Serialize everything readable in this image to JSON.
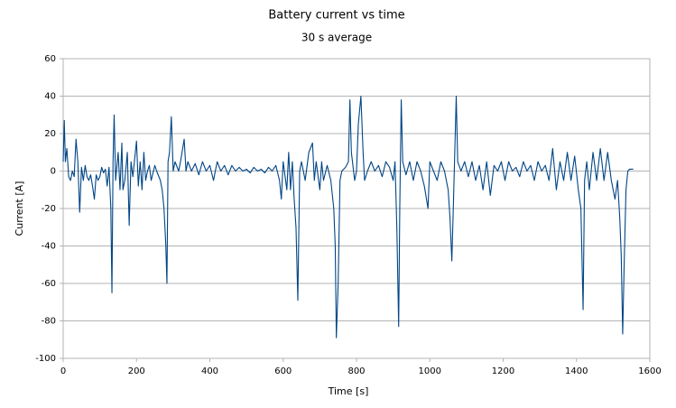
{
  "chart_data": {
    "type": "line",
    "title": "Battery current vs time",
    "subtitle": "30 s average",
    "x_label": "Time [s]",
    "y_label": "Current [A]",
    "color": "#004586",
    "grid": true,
    "xlim": [
      0,
      1600
    ],
    "xticks": [
      0,
      200,
      400,
      600,
      800,
      1000,
      1200,
      1400,
      1600
    ],
    "ylim": [
      -100,
      60
    ],
    "yticks": [
      -100,
      -80,
      -60,
      -40,
      -20,
      0,
      20,
      40,
      60
    ],
    "x": [
      0,
      3,
      6,
      10,
      15,
      20,
      25,
      30,
      35,
      40,
      45,
      50,
      55,
      60,
      65,
      70,
      75,
      80,
      85,
      90,
      95,
      100,
      105,
      110,
      115,
      120,
      125,
      130,
      133,
      136,
      139,
      143,
      150,
      155,
      160,
      163,
      168,
      175,
      180,
      185,
      190,
      200,
      205,
      210,
      215,
      220,
      225,
      230,
      235,
      240,
      250,
      255,
      265,
      270,
      275,
      280,
      283,
      286,
      290,
      295,
      300,
      305,
      315,
      320,
      330,
      335,
      340,
      350,
      360,
      370,
      380,
      390,
      400,
      410,
      420,
      430,
      440,
      450,
      460,
      470,
      480,
      490,
      500,
      510,
      520,
      530,
      540,
      550,
      560,
      570,
      580,
      590,
      595,
      600,
      610,
      615,
      620,
      625,
      630,
      635,
      640,
      645,
      650,
      660,
      670,
      680,
      685,
      690,
      700,
      705,
      710,
      720,
      730,
      738,
      742,
      745,
      750,
      755,
      760,
      770,
      778,
      782,
      786,
      795,
      800,
      805,
      812,
      818,
      822,
      830,
      840,
      850,
      860,
      870,
      880,
      890,
      900,
      905,
      910,
      915,
      918,
      922,
      926,
      935,
      945,
      955,
      965,
      975,
      985,
      995,
      1000,
      1010,
      1020,
      1030,
      1040,
      1050,
      1055,
      1060,
      1064,
      1068,
      1072,
      1076,
      1085,
      1095,
      1105,
      1115,
      1125,
      1135,
      1145,
      1155,
      1165,
      1175,
      1185,
      1195,
      1205,
      1215,
      1225,
      1235,
      1245,
      1255,
      1265,
      1275,
      1285,
      1295,
      1305,
      1315,
      1325,
      1335,
      1345,
      1355,
      1365,
      1375,
      1385,
      1395,
      1405,
      1412,
      1418,
      1422,
      1428,
      1435,
      1445,
      1455,
      1465,
      1475,
      1485,
      1495,
      1505,
      1512,
      1518,
      1522,
      1526,
      1530,
      1535,
      1540,
      1545,
      1555
    ],
    "values": [
      5,
      27,
      5,
      12,
      -3,
      -5,
      0,
      -3,
      17,
      5,
      -22,
      2,
      -5,
      3,
      -3,
      -5,
      -2,
      -8,
      -15,
      -2,
      -5,
      -3,
      2,
      -1,
      1,
      -8,
      2,
      -20,
      -65,
      5,
      30,
      -5,
      10,
      -10,
      15,
      -10,
      -5,
      10,
      -29,
      5,
      -3,
      16,
      -8,
      5,
      -10,
      10,
      -5,
      0,
      3,
      -5,
      3,
      0,
      -5,
      -10,
      -20,
      -40,
      -60,
      5,
      10,
      29,
      0,
      5,
      0,
      5,
      17,
      0,
      5,
      0,
      4,
      -2,
      5,
      0,
      3,
      -5,
      5,
      0,
      3,
      -2,
      3,
      0,
      2,
      0,
      1,
      -1,
      2,
      0,
      1,
      -1,
      2,
      0,
      3,
      -5,
      -15,
      5,
      -10,
      10,
      -10,
      5,
      -15,
      -30,
      -69,
      0,
      5,
      -5,
      10,
      15,
      -5,
      5,
      -10,
      5,
      -5,
      3,
      -5,
      -20,
      -40,
      -89,
      -60,
      -5,
      0,
      2,
      5,
      38,
      10,
      -5,
      0,
      25,
      40,
      10,
      -5,
      0,
      5,
      0,
      3,
      -3,
      5,
      2,
      -5,
      5,
      -30,
      -83,
      -20,
      38,
      5,
      -2,
      5,
      -5,
      5,
      0,
      -8,
      -20,
      5,
      0,
      -5,
      5,
      0,
      -10,
      -25,
      -48,
      -20,
      10,
      40,
      5,
      0,
      5,
      -3,
      5,
      -5,
      3,
      -10,
      5,
      -13,
      3,
      0,
      5,
      -5,
      5,
      0,
      2,
      -3,
      5,
      0,
      3,
      -5,
      5,
      0,
      3,
      -5,
      12,
      -10,
      5,
      -5,
      10,
      -5,
      8,
      -10,
      -20,
      -74,
      -5,
      5,
      -10,
      10,
      -5,
      12,
      -5,
      10,
      -5,
      -15,
      -5,
      -25,
      -45,
      -87,
      -50,
      -10,
      0,
      1,
      1
    ]
  }
}
